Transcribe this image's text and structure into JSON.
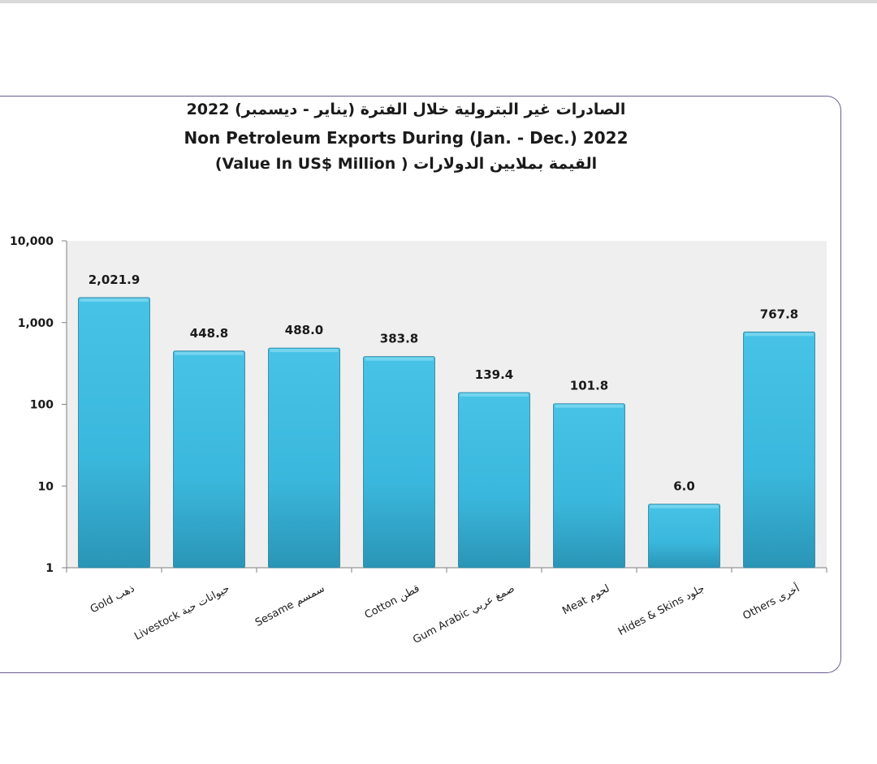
{
  "chart_data": {
    "type": "bar",
    "title_ar": "الصادرات غير البترولية خلال الفترة (يناير - ديسمبر) 2022",
    "title": "Non Petroleum Exports During (Jan. - Dec.) 2022",
    "subtitle": "القيمة بملايين الدولارات ( Value In US$ Million)",
    "y_scale": "log",
    "ylim": [
      1,
      10000
    ],
    "y_ticks": [
      "1",
      "10",
      "100",
      "1,000",
      "10,000"
    ],
    "y_tick_values": [
      1,
      10,
      100,
      1000,
      10000
    ],
    "grid": false,
    "legend": "none",
    "categories": [
      "Gold ذهب",
      "Livestock حيوانات حية",
      "Sesame سمسم",
      "Cotton قطن",
      "Gum Arabic صمغ عربي",
      "Meat لحوم",
      "Hides & Skins جلود",
      "Others أخرى"
    ],
    "values": [
      2021.9,
      448.8,
      488.0,
      383.8,
      139.4,
      101.8,
      6.0,
      767.8
    ],
    "value_labels": [
      "2,021.9",
      "448.8",
      "488.0",
      "383.8",
      "139.4",
      "101.8",
      "6.0",
      "767.8"
    ],
    "colors": {
      "bar": "#3ab7dc",
      "bar_dark": "#2a95b6",
      "plot_bg": "#efefef",
      "frame": "#6b5b95"
    }
  }
}
